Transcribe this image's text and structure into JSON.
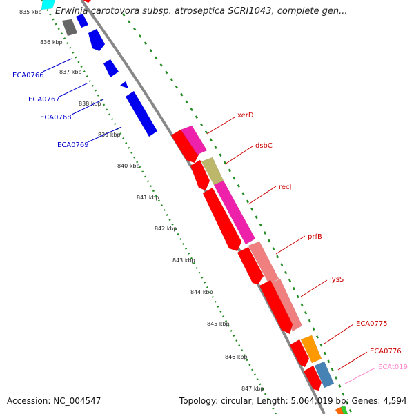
{
  "header": {
    "title": "Erwinia carotovora subsp. atroseptica SCRI1043, complete gen..."
  },
  "footer": {
    "accession": "Accession: NC_004547",
    "topology": "Topology: circular; Length: 5,064,019 bp; Genes: 4,594"
  },
  "scale_ticks": [
    "835 kbp",
    "836 kbp",
    "837 kbp",
    "838 kbp",
    "839 kbp",
    "840 kbp",
    "841 kbp",
    "842 kbp",
    "843 kbp",
    "844 kbp",
    "845 kbp",
    "846 kbp",
    "847 kbp"
  ],
  "gene_labels_left": [
    {
      "text": "ECA0766",
      "color": "#0000cc"
    },
    {
      "text": "ECA0767",
      "color": "#0000cc"
    },
    {
      "text": "ECA0768",
      "color": "#0000cc"
    },
    {
      "text": "ECA0769",
      "color": "#0000cc"
    }
  ],
  "gene_labels_right": [
    {
      "text": "xerD",
      "color": "#cc0000"
    },
    {
      "text": "dsbC",
      "color": "#cc0000"
    },
    {
      "text": "recJ",
      "color": "#cc0000"
    },
    {
      "text": "prfB",
      "color": "#cc0000"
    },
    {
      "text": "lysS",
      "color": "#cc0000"
    },
    {
      "text": "ECA0775",
      "color": "#cc0000"
    },
    {
      "text": "ECA0776",
      "color": "#cc0000"
    },
    {
      "text": "ECAt019",
      "color": "#ff88cc"
    }
  ],
  "colors": {
    "backbone": "#888888",
    "tick_dots": "#228b22",
    "blue_gene": "#0000ee",
    "red_gene": "#ff0000",
    "magenta_gene": "#ee22aa",
    "olive_gene": "#bdb76b",
    "salmon_gene": "#f08080",
    "orange_gene": "#ff9900",
    "steel_gene": "#4682b4",
    "cyan_gene": "#00ffff"
  }
}
